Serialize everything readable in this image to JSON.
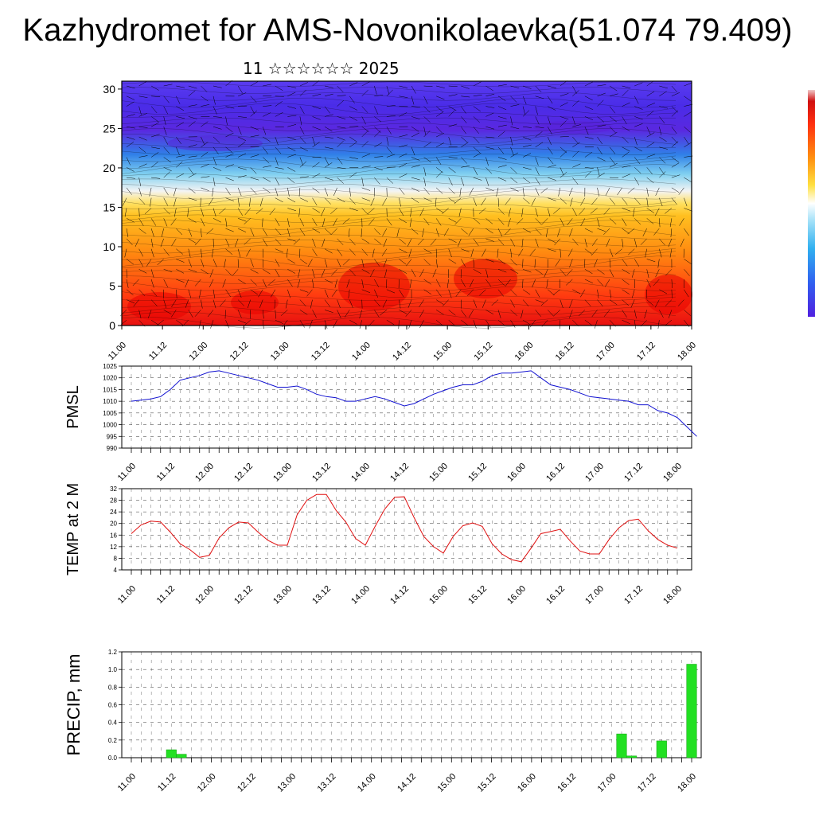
{
  "title": "Kazhydromet for AMS-Novonikolaevka(51.074 79.409)",
  "subtitle": "11 ☆☆☆☆☆☆ 2025",
  "colors": {
    "pmsl_line": "#1010d0",
    "temp_line": "#e01010",
    "precip_bar": "#22e022",
    "grid": "#000000"
  },
  "chart_data": [
    {
      "type": "heatmap",
      "name": "cross-section",
      "xlabel": "",
      "ylabel": "",
      "ylim": [
        0,
        31
      ],
      "y_ticks": [
        0,
        5,
        10,
        15,
        20,
        25,
        30
      ],
      "x_ticks": [
        "11.00",
        "11.12",
        "12.00",
        "12.12",
        "13.00",
        "13.12",
        "14.00",
        "14.12",
        "15.00",
        "15.12",
        "16.00",
        "16.12",
        "17.00",
        "17.12",
        "18.00"
      ],
      "colorbar": "blue-white-yellow-red",
      "overlay": "wind barbs"
    },
    {
      "type": "line",
      "name": "pmsl",
      "ylabel": "PMSL",
      "ylim": [
        990,
        1025
      ],
      "y_ticks": [
        990,
        995,
        1000,
        1005,
        1010,
        1015,
        1020,
        1025
      ],
      "x_ticks": [
        "11.00",
        "11.12",
        "12.00",
        "12.12",
        "13.00",
        "13.12",
        "14.00",
        "14.12",
        "15.00",
        "15.12",
        "16.00",
        "16.12",
        "17.00",
        "17.12",
        "18.00"
      ],
      "step_hours": 3,
      "values": [
        1010,
        1010.5,
        1011,
        1012,
        1015,
        1019,
        1020,
        1021,
        1022.5,
        1023,
        1022,
        1021,
        1020,
        1019,
        1017.5,
        1016,
        1016,
        1016.5,
        1015,
        1013,
        1012,
        1011.5,
        1010,
        1010,
        1011,
        1012,
        1011,
        1009.5,
        1008,
        1009,
        1011,
        1013,
        1014.5,
        1016,
        1017,
        1017,
        1018.5,
        1021,
        1022,
        1022,
        1022.5,
        1023,
        1020,
        1017,
        1016,
        1015,
        1013.5,
        1012,
        1011.5,
        1011,
        1010.5,
        1010,
        1008.5,
        1008.5,
        1006,
        1005,
        1003,
        999,
        995
      ]
    },
    {
      "type": "line",
      "name": "temp",
      "ylabel": "TEMP at 2 M",
      "ylim": [
        4,
        32
      ],
      "y_ticks": [
        4,
        8,
        12,
        16,
        20,
        24,
        28,
        32
      ],
      "x_ticks": [
        "11.00",
        "11.12",
        "12.00",
        "12.12",
        "13.00",
        "13.12",
        "14.00",
        "14.12",
        "15.00",
        "15.12",
        "16.00",
        "16.12",
        "17.00",
        "17.12",
        "18.00"
      ],
      "step_hours": 3,
      "values": [
        16.5,
        19.5,
        20.8,
        20.5,
        17,
        13,
        11,
        8.3,
        9,
        15,
        18.5,
        20.5,
        20.2,
        17,
        14.2,
        12.5,
        12.5,
        23,
        28,
        30,
        30,
        24.5,
        20.5,
        14.8,
        12.5,
        19,
        25,
        29,
        29.2,
        22,
        15.5,
        12,
        9.8,
        15.5,
        19.2,
        20.2,
        19,
        13,
        9.5,
        7.5,
        6.8,
        11.5,
        16.5,
        17.2,
        18,
        14,
        10.5,
        9.5,
        9.5,
        14.5,
        18.5,
        21,
        21.5,
        17.5,
        14.5,
        12.5,
        11.5
      ]
    },
    {
      "type": "bar",
      "name": "precip",
      "ylabel": "PRECIP, mm",
      "ylim": [
        0,
        1.2
      ],
      "y_ticks": [
        "0.0",
        "0.2",
        "0.4",
        "0.6",
        "0.8",
        "1.0",
        "1.2"
      ],
      "x_ticks": [
        "11.00",
        "11.12",
        "12.00",
        "12.12",
        "13.00",
        "13.12",
        "14.00",
        "14.12",
        "15.00",
        "15.12",
        "16.00",
        "16.12",
        "17.00",
        "17.12",
        "18.00"
      ],
      "step_hours": 3,
      "bars": [
        {
          "index": 4,
          "value": 0.09
        },
        {
          "index": 5,
          "value": 0.04
        },
        {
          "index": 49,
          "value": 0.27
        },
        {
          "index": 50,
          "value": 0.02
        },
        {
          "index": 53,
          "value": 0.19
        },
        {
          "index": 56,
          "value": 1.06
        }
      ]
    }
  ]
}
